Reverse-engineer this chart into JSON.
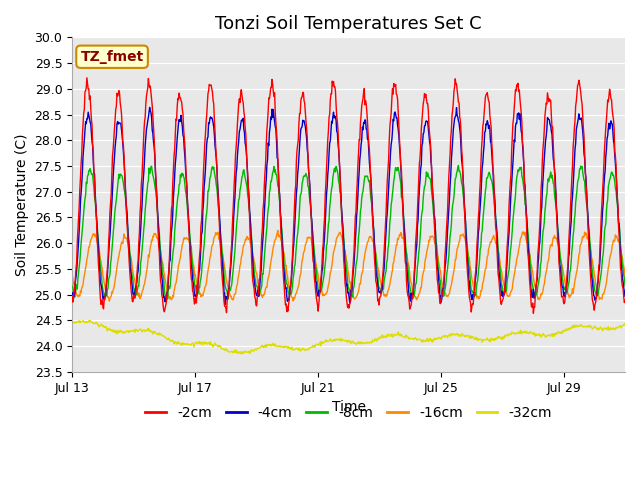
{
  "title": "Tonzi Soil Temperatures Set C",
  "xlabel": "Time",
  "ylabel": "Soil Temperature (C)",
  "ylim": [
    23.5,
    30.0
  ],
  "yticks": [
    23.5,
    24.0,
    24.5,
    25.0,
    25.5,
    26.0,
    26.5,
    27.0,
    27.5,
    28.0,
    28.5,
    29.0,
    29.5,
    30.0
  ],
  "xtick_labels": [
    "Jul 13",
    "Jul 17",
    "Jul 21",
    "Jul 25",
    "Jul 29"
  ],
  "xtick_positions": [
    0,
    4,
    8,
    12,
    16
  ],
  "legend_labels": [
    "-2cm",
    "-4cm",
    "-8cm",
    "-16cm",
    "-32cm"
  ],
  "legend_colors": [
    "#ff0000",
    "#0000cc",
    "#00bb00",
    "#ff8800",
    "#dddd00"
  ],
  "annotation_text": "TZ_fmet",
  "annotation_bg": "#ffffcc",
  "annotation_border": "#cc8800",
  "bg_color": "#e8e8e8",
  "fig_bg": "#ffffff",
  "n_days": 18,
  "depth2_mean": 26.9,
  "depth2_amp": 2.1,
  "depth4_mean": 26.7,
  "depth4_amp": 1.75,
  "depth8_mean": 26.2,
  "depth8_amp": 1.2,
  "depth16_mean": 25.55,
  "depth16_amp": 0.6,
  "depth32_mean": 24.2,
  "depth32_amp": 0.15,
  "title_fontsize": 13,
  "axis_label_fontsize": 10,
  "tick_fontsize": 9,
  "legend_fontsize": 10
}
